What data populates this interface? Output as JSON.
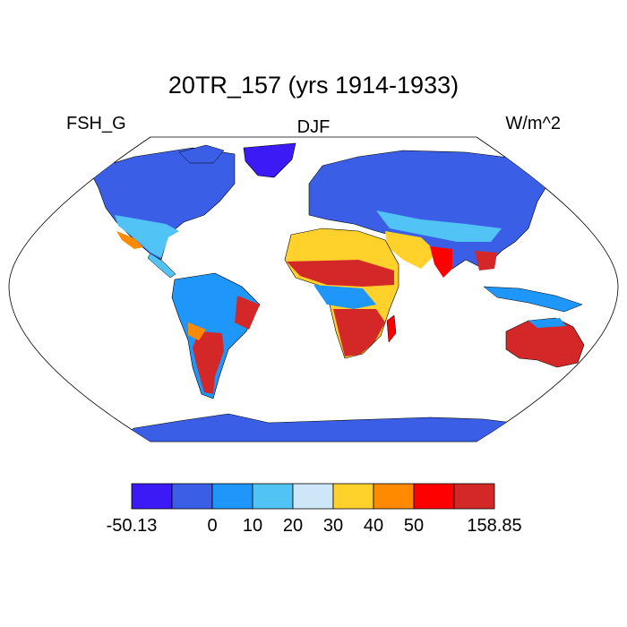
{
  "title": "20TR_157 (yrs 1914-1933)",
  "left_label": "FSH_G",
  "center_label": "DJF",
  "right_label": "W/m^2",
  "colorbar": {
    "colors": [
      "#3b1af5",
      "#3a5fe6",
      "#1e96fa",
      "#52c3f5",
      "#cde7f9",
      "#ffd12a",
      "#ff8a00",
      "#ff0000",
      "#d42828"
    ],
    "tick_labels": [
      "-50.13",
      "0",
      "10",
      "20",
      "30",
      "40",
      "50",
      "158.85"
    ]
  }
}
